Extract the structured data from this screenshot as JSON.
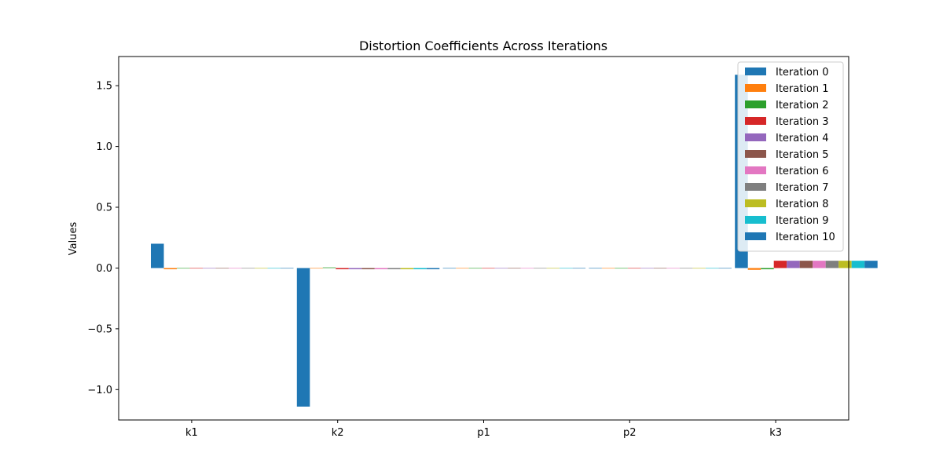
{
  "chart_data": {
    "type": "bar",
    "title": "Distortion Coefficients Across Iterations",
    "xlabel": "",
    "ylabel": "Values",
    "categories": [
      "k1",
      "k2",
      "p1",
      "p2",
      "k3"
    ],
    "ylim": [
      -1.25,
      1.74
    ],
    "yticks": [
      -1.0,
      -0.5,
      0.0,
      0.5,
      1.0,
      1.5
    ],
    "ytick_labels": [
      "−1.0",
      "−0.5",
      "0.0",
      "0.5",
      "1.0",
      "1.5"
    ],
    "legend_position": "top-right",
    "series": [
      {
        "name": "Iteration 0",
        "color": "#1f77b4",
        "values": [
          0.2,
          -1.14,
          0.0,
          0.0,
          1.59
        ]
      },
      {
        "name": "Iteration 1",
        "color": "#ff7f0e",
        "values": [
          -0.01,
          0.0,
          0.0,
          0.0,
          -0.015
        ]
      },
      {
        "name": "Iteration 2",
        "color": "#2ca02c",
        "values": [
          0.0,
          0.005,
          0.0,
          0.0,
          -0.01
        ]
      },
      {
        "name": "Iteration 3",
        "color": "#d62728",
        "values": [
          0.0,
          -0.01,
          0.0,
          0.0,
          0.06
        ]
      },
      {
        "name": "Iteration 4",
        "color": "#9467bd",
        "values": [
          0.0,
          -0.01,
          0.0,
          0.0,
          0.06
        ]
      },
      {
        "name": "Iteration 5",
        "color": "#8c564b",
        "values": [
          0.0,
          -0.01,
          0.0,
          0.0,
          0.06
        ]
      },
      {
        "name": "Iteration 6",
        "color": "#e377c2",
        "values": [
          0.0,
          -0.01,
          0.0,
          0.0,
          0.06
        ]
      },
      {
        "name": "Iteration 7",
        "color": "#7f7f7f",
        "values": [
          0.0,
          -0.01,
          0.0,
          0.0,
          0.06
        ]
      },
      {
        "name": "Iteration 8",
        "color": "#bcbd22",
        "values": [
          0.0,
          -0.01,
          0.0,
          0.0,
          0.06
        ]
      },
      {
        "name": "Iteration 9",
        "color": "#17becf",
        "values": [
          0.0,
          -0.01,
          0.0,
          0.0,
          0.06
        ]
      },
      {
        "name": "Iteration 10",
        "color": "#1f77b4",
        "values": [
          0.0,
          -0.01,
          0.0,
          0.0,
          0.06
        ]
      }
    ]
  }
}
